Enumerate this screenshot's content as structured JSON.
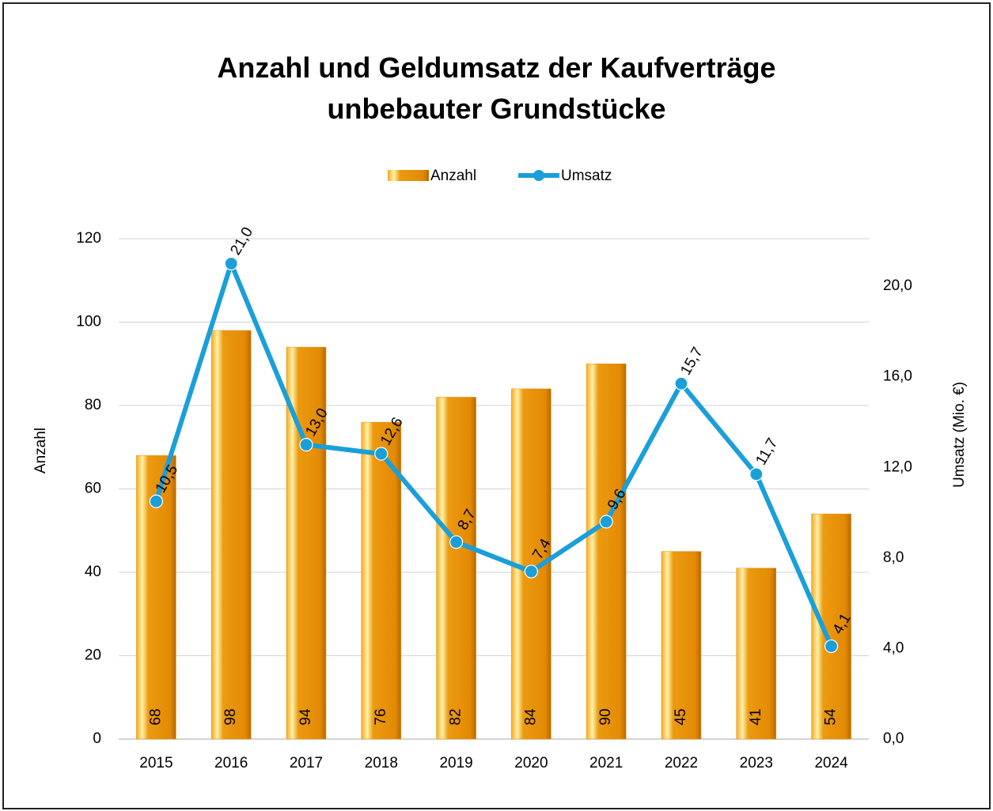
{
  "chart_data": {
    "type": "bar_line",
    "title": "Anzahl und Geldumsatz der Kaufverträge\nunbebauter Grundstücke",
    "y_label": "Anzahl",
    "y2_label": "Umsatz (Mio. €)",
    "categories": [
      "2015",
      "2016",
      "2017",
      "2018",
      "2019",
      "2020",
      "2021",
      "2022",
      "2023",
      "2024"
    ],
    "series": [
      {
        "name": "Anzahl",
        "type": "bar",
        "color": "#e8900a",
        "values": [
          68,
          98,
          94,
          76,
          82,
          84,
          90,
          45,
          41,
          54
        ]
      },
      {
        "name": "Umsatz",
        "type": "line",
        "axis": "y2",
        "color": "#1a9fd8",
        "values": [
          10.5,
          21.0,
          13.0,
          12.6,
          8.7,
          7.4,
          9.6,
          15.7,
          11.7,
          4.1
        ],
        "value_labels": [
          "10,5",
          "21,0",
          "13,0",
          "12,6",
          "8,7",
          "7,4",
          "9,6",
          "15,7",
          "11,7",
          "4,1"
        ]
      }
    ],
    "ylim": [
      0,
      120
    ],
    "yticks": [
      0,
      20,
      40,
      60,
      80,
      100,
      120
    ],
    "y2lim": [
      0,
      22.1
    ],
    "y2ticks": [
      {
        "value": 0,
        "label": "0,0"
      },
      {
        "value": 4,
        "label": "4,0"
      },
      {
        "value": 8,
        "label": "8,0"
      },
      {
        "value": 12,
        "label": "12,0"
      },
      {
        "value": 16,
        "label": "16,0"
      },
      {
        "value": 20,
        "label": "20,0"
      }
    ],
    "grid": true,
    "legend": "top"
  }
}
